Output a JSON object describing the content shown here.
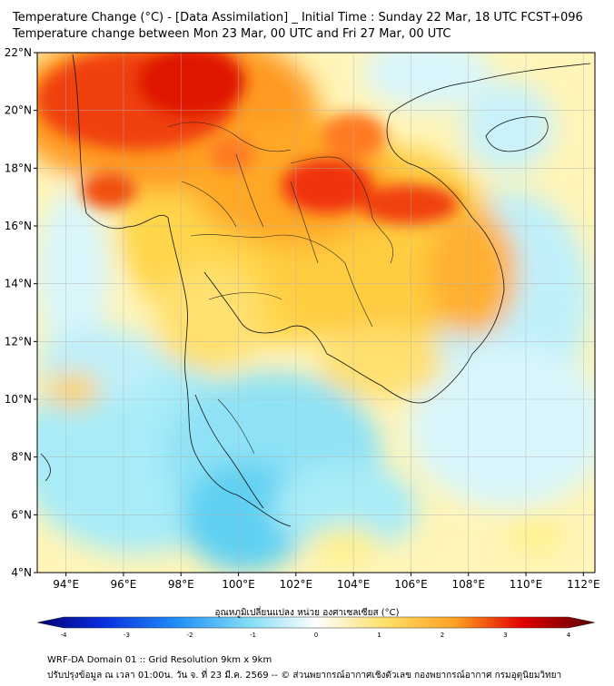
{
  "header": {
    "title_line1": "Temperature Change (°C) - [Data Assimilation] _ Initial Time : Sunday 22 Mar, 18 UTC FCST+096",
    "title_line2": "Temperature change between Mon 23 Mar, 00 UTC and Fri 27 Mar, 00 UTC"
  },
  "map": {
    "lon_ticks": [
      "94°E",
      "96°E",
      "98°E",
      "100°E",
      "102°E",
      "104°E",
      "106°E",
      "108°E",
      "110°E",
      "112°E"
    ],
    "lat_ticks": [
      "22°N",
      "20°N",
      "18°N",
      "16°N",
      "14°N",
      "12°N",
      "10°N",
      "8°N",
      "6°N",
      "4°N"
    ],
    "extent": {
      "lon_min": 93,
      "lon_max": 112.4,
      "lat_min": 4,
      "lat_max": 22
    }
  },
  "colorbar": {
    "title": "อุณหภูมิเปลี่ยนแปลง หน่วย องศาเซลเซียส (°C)",
    "tick_labels": [
      "-4",
      "-3",
      "-2",
      "-1",
      "0",
      "1",
      "2",
      "3",
      "4"
    ],
    "colors": {
      "cold_end": "#00008b",
      "cool": "#1e90ff",
      "cyan": "#7fdcf5",
      "neutral": "#ffffff",
      "warm": "#ffe066",
      "orange": "#ff8c1a",
      "hot": "#e00000",
      "hot_end": "#5a0000"
    }
  },
  "footer": {
    "line1": "WRF-DA Domain 01 :: Grid Resolution 9km x 9km",
    "line2": "ปรับปรุงข้อมูล ณ เวลา 01:00น. วัน จ. ที่ 23 มี.ค. 2569 -- © ส่วนพยากรณ์อากาศเชิงตัวเลข กองพยากรณ์อากาศ กรมอุตุนิยมวิทยา"
  }
}
